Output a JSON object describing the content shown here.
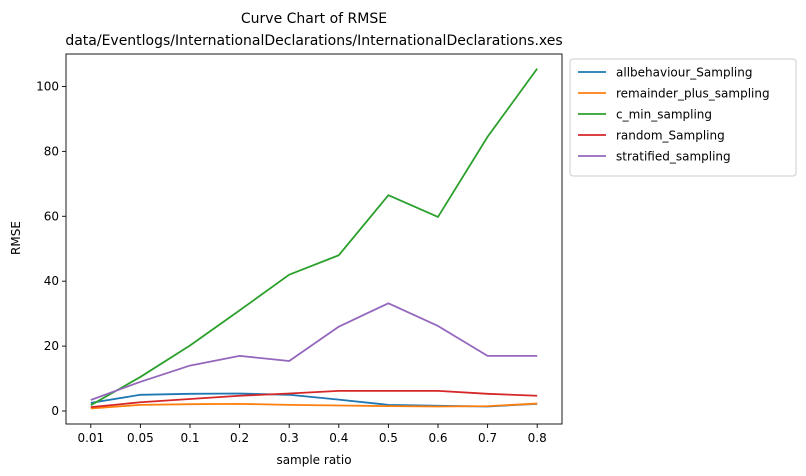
{
  "chart_data": {
    "type": "line",
    "title": "Curve Chart of RMSE",
    "subtitle": "data/Eventlogs/InternationalDeclarations/InternationalDeclarations.xes",
    "xlabel": "sample ratio",
    "ylabel": "RMSE",
    "categories": [
      "0.01",
      "0.05",
      "0.1",
      "0.2",
      "0.3",
      "0.4",
      "0.5",
      "0.6",
      "0.7",
      "0.8"
    ],
    "ylim": [
      -4,
      110
    ],
    "yticks": [
      0,
      20,
      40,
      60,
      80,
      100
    ],
    "grid": false,
    "legend_position": "outside-top-right",
    "series": [
      {
        "name": "allbehaviour_Sampling",
        "color": "#1f77b4",
        "values": [
          2.5,
          5.0,
          5.3,
          5.4,
          5.0,
          3.5,
          1.9,
          1.6,
          1.4,
          2.2
        ]
      },
      {
        "name": "remainder_plus_sampling",
        "color": "#ff7f0e",
        "values": [
          0.8,
          1.9,
          2.1,
          2.2,
          1.9,
          1.7,
          1.5,
          1.4,
          1.5,
          2.3
        ]
      },
      {
        "name": "c_min_sampling",
        "color": "#2ca02c",
        "values": [
          1.8,
          10.5,
          20.2,
          31.0,
          42.0,
          48.0,
          66.5,
          59.8,
          84.5,
          105.5
        ]
      },
      {
        "name": "random_Sampling",
        "color": "#d62728",
        "values": [
          1.2,
          2.7,
          3.7,
          4.7,
          5.4,
          6.2,
          6.2,
          6.2,
          5.3,
          4.7
        ]
      },
      {
        "name": "stratified_sampling",
        "color": "#9467bd",
        "values": [
          3.4,
          9.0,
          14.0,
          17.0,
          15.4,
          26.0,
          33.2,
          26.2,
          17.0,
          17.0
        ]
      }
    ]
  }
}
